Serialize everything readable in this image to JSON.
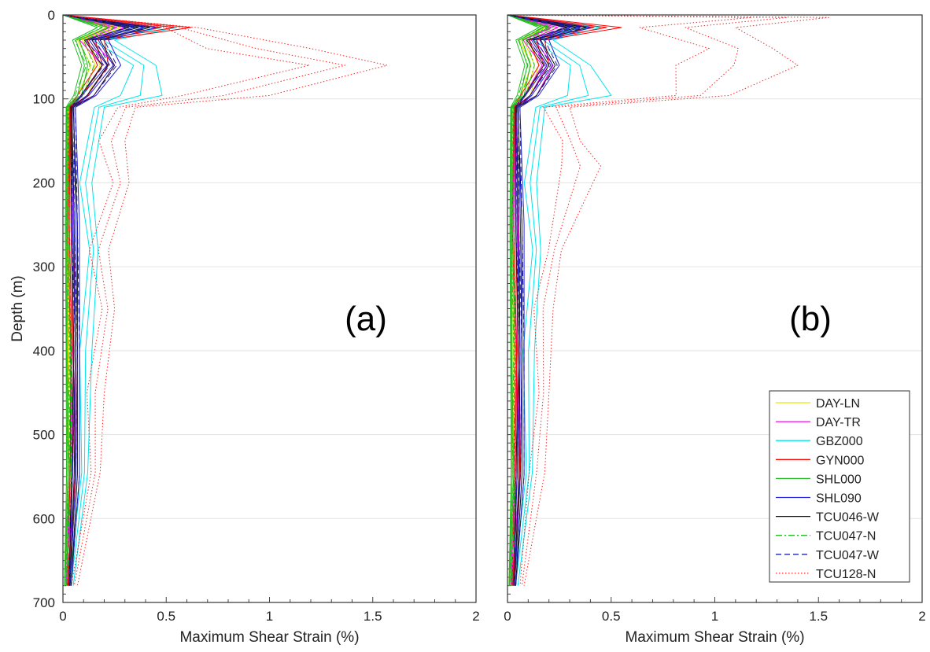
{
  "chart_data": [
    {
      "type": "line",
      "panel_label": "(a)",
      "xlabel": "Maximum Shear Strain (%)",
      "ylabel": "Depth (m)",
      "xlim": [
        0,
        2
      ],
      "ylim": [
        0,
        700
      ],
      "y_inverted": true,
      "xticks": [
        "0",
        "0.5",
        "1",
        "1.5",
        "2"
      ],
      "yticks": [
        "0",
        "100",
        "200",
        "300",
        "400",
        "500",
        "600",
        "700"
      ],
      "grid": "horizontal",
      "series": [
        {
          "name": "DAY-LN",
          "color": "#e6e600",
          "dash": "solid",
          "depth": [
            0,
            15,
            30,
            60,
            96,
            110,
            250,
            400,
            548,
            680
          ],
          "strain": [
            0,
            0.28,
            0.12,
            0.18,
            0.12,
            0.03,
            0.03,
            0.03,
            0.03,
            0.01
          ]
        },
        {
          "name": "DAY-TR",
          "color": "#ff00ff",
          "dash": "solid",
          "depth": [
            0,
            15,
            30,
            60,
            96,
            110,
            250,
            400,
            548,
            680
          ],
          "strain": [
            0,
            0.3,
            0.14,
            0.25,
            0.15,
            0.04,
            0.05,
            0.06,
            0.06,
            0.02
          ]
        },
        {
          "name": "GBZ000",
          "color": "#00e5ee",
          "dash": "solid",
          "depth": [
            0,
            15,
            30,
            60,
            96,
            110,
            200,
            280,
            400,
            545,
            680
          ],
          "strain": [
            0,
            0.55,
            0.25,
            0.45,
            0.48,
            0.2,
            0.14,
            0.17,
            0.14,
            0.12,
            0.05
          ]
        },
        {
          "name": "GYN000",
          "color": "#ff0000",
          "dash": "solid",
          "depth": [
            0,
            15,
            30,
            60,
            96,
            110,
            250,
            400,
            548,
            680
          ],
          "strain": [
            0,
            0.62,
            0.2,
            0.22,
            0.12,
            0.04,
            0.04,
            0.05,
            0.06,
            0.03
          ]
        },
        {
          "name": "SHL000",
          "color": "#22bb22",
          "dash": "solid",
          "depth": [
            0,
            15,
            30,
            60,
            96,
            110,
            250,
            400,
            548,
            680
          ],
          "strain": [
            0,
            0.22,
            0.08,
            0.12,
            0.09,
            0.02,
            0.02,
            0.02,
            0.03,
            0.01
          ]
        },
        {
          "name": "SHL090",
          "color": "#2222dd",
          "dash": "solid",
          "depth": [
            0,
            15,
            30,
            60,
            96,
            110,
            250,
            400,
            548,
            680
          ],
          "strain": [
            0,
            0.45,
            0.22,
            0.28,
            0.16,
            0.06,
            0.08,
            0.08,
            0.08,
            0.04
          ]
        },
        {
          "name": "TCU046-W",
          "color": "#111111",
          "dash": "solid",
          "depth": [
            0,
            15,
            30,
            60,
            96,
            110,
            250,
            400,
            548,
            680
          ],
          "strain": [
            0,
            0.42,
            0.18,
            0.25,
            0.15,
            0.05,
            0.07,
            0.07,
            0.07,
            0.04
          ]
        },
        {
          "name": "TCU047-N",
          "color": "#22bb22",
          "dash": "dashdot",
          "depth": [
            0,
            15,
            30,
            60,
            96,
            110,
            250,
            400,
            548,
            680
          ],
          "strain": [
            0,
            0.25,
            0.1,
            0.15,
            0.1,
            0.03,
            0.03,
            0.04,
            0.04,
            0.02
          ]
        },
        {
          "name": "TCU047-W",
          "color": "#2222aa",
          "dash": "dashed",
          "depth": [
            0,
            15,
            30,
            60,
            96,
            110,
            250,
            400,
            548,
            680
          ],
          "strain": [
            0,
            0.4,
            0.2,
            0.26,
            0.15,
            0.06,
            0.07,
            0.08,
            0.08,
            0.04
          ]
        },
        {
          "name": "TCU128-N",
          "color": "#ff2222",
          "dash": "dotted",
          "depth": [
            0,
            15,
            40,
            60,
            96,
            110,
            150,
            200,
            280,
            350,
            450,
            545,
            680
          ],
          "strain": [
            0,
            0.65,
            1.2,
            1.57,
            1.0,
            0.35,
            0.3,
            0.32,
            0.22,
            0.25,
            0.2,
            0.18,
            0.07
          ]
        }
      ]
    },
    {
      "type": "line",
      "panel_label": "(b)",
      "xlabel": "Maximum Shear Strain (%)",
      "ylabel": "",
      "xlim": [
        0,
        2
      ],
      "ylim": [
        0,
        700
      ],
      "y_inverted": true,
      "xticks": [
        "0",
        "0.5",
        "1",
        "1.5",
        "2"
      ],
      "grid": "horizontal",
      "legend_position": "bottom-right",
      "series": [
        {
          "name": "DAY-LN",
          "color": "#e6e600",
          "dash": "solid",
          "depth": [
            0,
            15,
            30,
            60,
            96,
            110,
            250,
            400,
            548,
            680
          ],
          "strain": [
            0,
            0.24,
            0.1,
            0.15,
            0.11,
            0.03,
            0.03,
            0.03,
            0.03,
            0.01
          ]
        },
        {
          "name": "DAY-TR",
          "color": "#ff00ff",
          "dash": "solid",
          "depth": [
            0,
            15,
            30,
            60,
            96,
            110,
            250,
            400,
            548,
            680
          ],
          "strain": [
            0,
            0.28,
            0.13,
            0.22,
            0.14,
            0.04,
            0.05,
            0.06,
            0.06,
            0.02
          ]
        },
        {
          "name": "GBZ000",
          "color": "#00e5ee",
          "dash": "solid",
          "depth": [
            0,
            15,
            30,
            60,
            96,
            110,
            200,
            280,
            400,
            545,
            680
          ],
          "strain": [
            0,
            0.45,
            0.22,
            0.4,
            0.5,
            0.18,
            0.14,
            0.16,
            0.13,
            0.12,
            0.05
          ]
        },
        {
          "name": "GYN000",
          "color": "#ff0000",
          "dash": "solid",
          "depth": [
            0,
            15,
            30,
            60,
            96,
            110,
            250,
            400,
            548,
            680
          ],
          "strain": [
            0,
            0.55,
            0.18,
            0.2,
            0.11,
            0.04,
            0.04,
            0.05,
            0.06,
            0.03
          ]
        },
        {
          "name": "SHL000",
          "color": "#22bb22",
          "dash": "solid",
          "depth": [
            0,
            15,
            30,
            60,
            96,
            110,
            250,
            400,
            548,
            680
          ],
          "strain": [
            0,
            0.2,
            0.07,
            0.11,
            0.08,
            0.02,
            0.02,
            0.02,
            0.03,
            0.01
          ]
        },
        {
          "name": "SHL090",
          "color": "#2222dd",
          "dash": "solid",
          "depth": [
            0,
            15,
            30,
            60,
            96,
            110,
            250,
            400,
            548,
            680
          ],
          "strain": [
            0,
            0.4,
            0.2,
            0.25,
            0.15,
            0.06,
            0.08,
            0.08,
            0.08,
            0.04
          ]
        },
        {
          "name": "TCU046-W",
          "color": "#111111",
          "dash": "solid",
          "depth": [
            0,
            15,
            30,
            60,
            96,
            110,
            250,
            400,
            548,
            680
          ],
          "strain": [
            0,
            0.38,
            0.16,
            0.23,
            0.14,
            0.05,
            0.07,
            0.07,
            0.07,
            0.04
          ]
        },
        {
          "name": "TCU047-N",
          "color": "#22bb22",
          "dash": "dashdot",
          "depth": [
            0,
            15,
            30,
            60,
            96,
            110,
            250,
            400,
            548,
            680
          ],
          "strain": [
            0,
            0.22,
            0.09,
            0.13,
            0.09,
            0.03,
            0.03,
            0.04,
            0.04,
            0.02
          ]
        },
        {
          "name": "TCU047-W",
          "color": "#2222aa",
          "dash": "dashed",
          "depth": [
            0,
            15,
            30,
            60,
            96,
            110,
            250,
            400,
            548,
            680
          ],
          "strain": [
            0,
            0.36,
            0.18,
            0.24,
            0.14,
            0.06,
            0.07,
            0.08,
            0.08,
            0.04
          ]
        },
        {
          "name": "TCU128-N",
          "color": "#ff2222",
          "dash": "dotted",
          "depth": [
            0,
            3,
            15,
            40,
            60,
            96,
            110,
            150,
            180,
            280,
            350,
            450,
            545,
            680
          ],
          "strain": [
            0,
            1.55,
            1.1,
            1.28,
            1.4,
            1.07,
            0.3,
            0.35,
            0.45,
            0.26,
            0.22,
            0.2,
            0.18,
            0.08
          ]
        }
      ]
    }
  ]
}
